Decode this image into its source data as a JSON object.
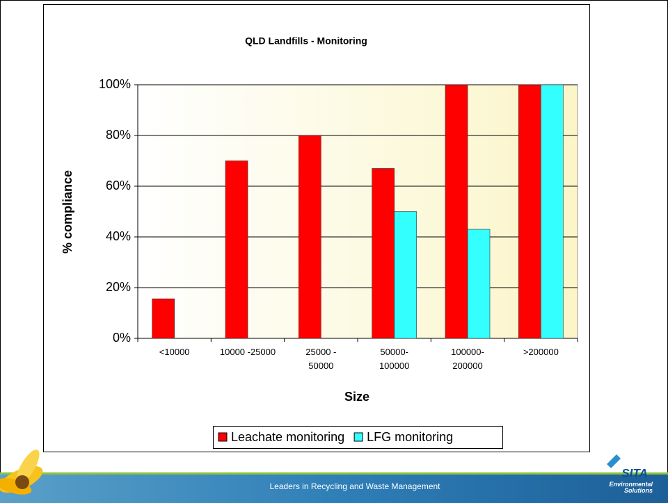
{
  "chart_data": {
    "type": "bar",
    "title": "QLD Landfills - Monitoring",
    "x_label": "Size",
    "y_label": "% compliance",
    "categories": [
      "<10000",
      "10000 -25000",
      "25000 -\n50000",
      "50000-\n100000",
      "100000-\n200000",
      ">200000"
    ],
    "series": [
      {
        "name": "Leachate monitoring",
        "color": "#ff0000",
        "values": [
          15.6,
          70,
          80,
          67,
          100,
          100
        ]
      },
      {
        "name": "LFG monitoring",
        "color": "#33ffff",
        "values": [
          0,
          0,
          0,
          50,
          43,
          100
        ]
      }
    ],
    "ylim": [
      0,
      100
    ],
    "yticks": [
      {
        "value": 0,
        "label": "0%"
      },
      {
        "value": 20,
        "label": "20%"
      },
      {
        "value": 40,
        "label": "40%"
      },
      {
        "value": 60,
        "label": "60%"
      },
      {
        "value": 80,
        "label": "80%"
      },
      {
        "value": 100,
        "label": "100%"
      }
    ],
    "grid": true,
    "legend": "bottom"
  },
  "footer": {
    "tagline": "Leaders in Recycling and Waste Management",
    "logo": "SITA",
    "logo_sub": "Environmental Solutions"
  }
}
